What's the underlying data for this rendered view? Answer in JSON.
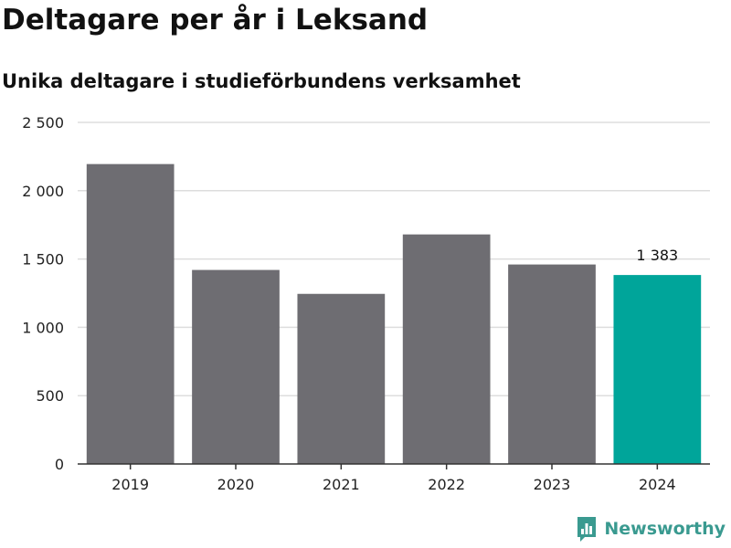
{
  "header": {
    "title": "Deltagare per år i Leksand",
    "subtitle": "Unika deltagare i studieförbundens verksamhet"
  },
  "brand": {
    "name": "Newsworthy",
    "logo_icon": "bar-chart-icon",
    "color": "#3a9a90"
  },
  "colors": {
    "bar": "#6e6d72",
    "highlight": "#00a59a",
    "grid": "#dddddd",
    "axis": "#333333"
  },
  "chart_data": {
    "type": "bar",
    "categories": [
      "2019",
      "2020",
      "2021",
      "2022",
      "2023",
      "2024"
    ],
    "values": [
      2195,
      1420,
      1245,
      1680,
      1460,
      1383
    ],
    "highlight_index": 5,
    "data_labels": [
      {
        "index": 5,
        "text": "1 383"
      }
    ],
    "title": "Deltagare per år i Leksand",
    "subtitle": "Unika deltagare i studieförbundens verksamhet",
    "xlabel": "",
    "ylabel": "",
    "ylim": [
      0,
      2500
    ],
    "yticks": [
      0,
      500,
      1000,
      1500,
      2000,
      2500
    ],
    "ytick_labels": [
      "0",
      "500",
      "1 000",
      "1 500",
      "2 000",
      "2 500"
    ],
    "grid": true,
    "legend": "none"
  }
}
